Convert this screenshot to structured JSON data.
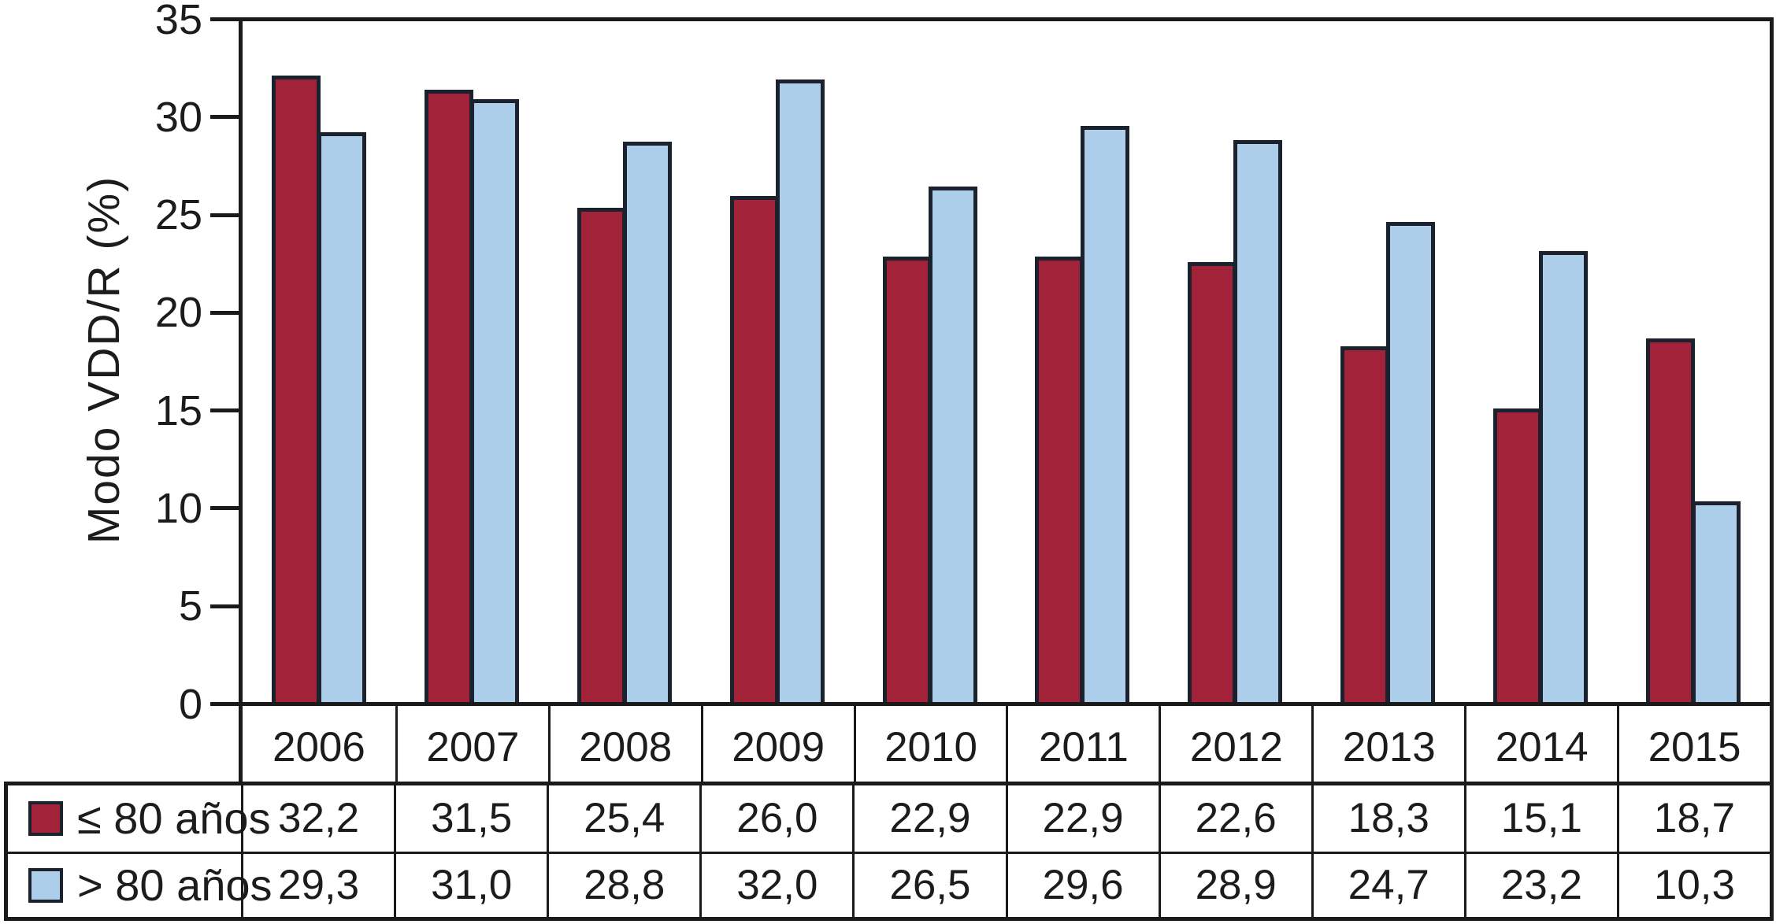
{
  "figure": {
    "background": "#ffffff",
    "axis_line_color": "#1a1a1a",
    "bar_border_color": "#1b212d",
    "text_color": "#1c1c1c"
  },
  "chart_data": {
    "type": "bar",
    "title": "",
    "xlabel": "",
    "ylabel": "Modo VDD/R (%)",
    "ylim": [
      0,
      35
    ],
    "y_ticks": [
      0,
      5,
      10,
      15,
      20,
      25,
      30,
      35
    ],
    "grid": false,
    "legend_position": "table-rows-left",
    "categories": [
      "2006",
      "2007",
      "2008",
      "2009",
      "2010",
      "2011",
      "2012",
      "2013",
      "2014",
      "2015"
    ],
    "series": [
      {
        "name": "≤ 80 años",
        "color": "#a22339",
        "values": [
          32.2,
          31.5,
          25.4,
          26.0,
          22.9,
          22.9,
          22.6,
          18.3,
          15.1,
          18.7
        ],
        "labels": [
          "32,2",
          "31,5",
          "25,4",
          "26,0",
          "22,9",
          "22,9",
          "22,6",
          "18,3",
          "15,1",
          "18,7"
        ]
      },
      {
        "name": "> 80 años",
        "color": "#acceea",
        "values": [
          29.3,
          31.0,
          28.8,
          32.0,
          26.5,
          29.6,
          28.9,
          24.7,
          23.2,
          10.3
        ],
        "labels": [
          "29,3",
          "31,0",
          "28,8",
          "32,0",
          "26,5",
          "29,6",
          "28,9",
          "24,7",
          "23,2",
          "10,3"
        ]
      }
    ]
  }
}
